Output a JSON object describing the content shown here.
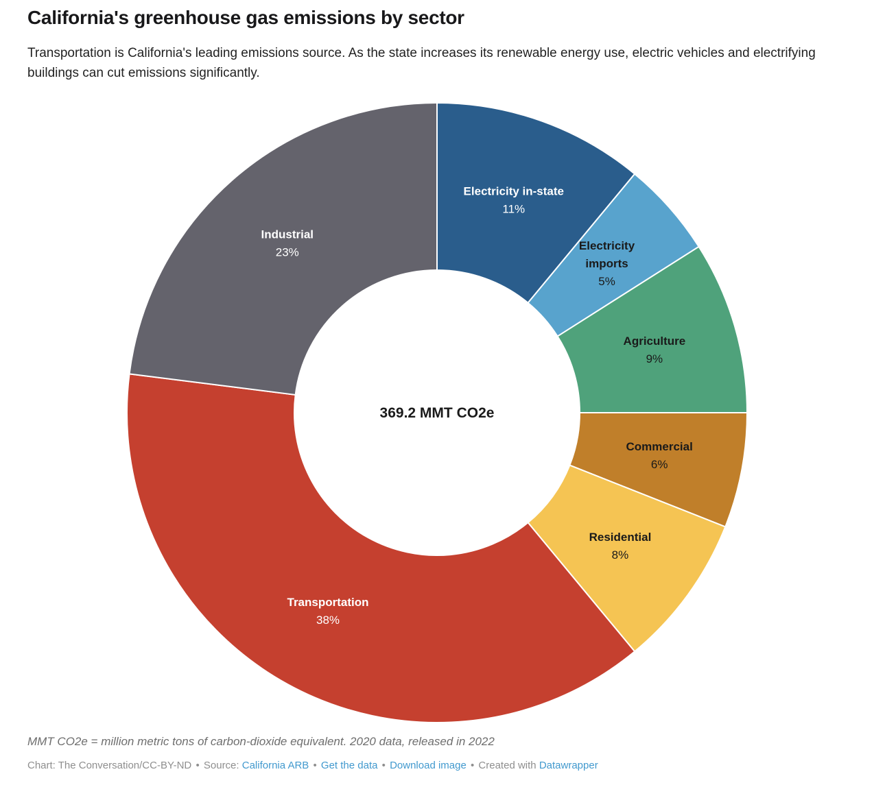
{
  "header": {
    "title": "California's greenhouse gas emissions by sector",
    "subtitle": "Transportation is California's leading emissions source. As the state increases its renewable energy use, electric vehicles and electrifying buildings can cut emissions significantly."
  },
  "chart_data": {
    "type": "pie",
    "variant": "donut",
    "title": "California's greenhouse gas emissions by sector",
    "center_label": "369.2 MMT CO2e",
    "total_value": 369.2,
    "unit": "MMT CO2e",
    "start_angle_deg": 0,
    "direction": "clockwise",
    "legend_position": "labels-inside-slices",
    "segments": [
      {
        "label": "Electricity in-state",
        "label_lines": [
          "Electricity in-state"
        ],
        "pct": 11,
        "color": "#2a5d8c",
        "label_color": "#ffffff"
      },
      {
        "label": "Electricity imports",
        "label_lines": [
          "Electricity",
          "imports"
        ],
        "pct": 5,
        "color": "#58a3cd",
        "label_color": "#1a1a1a"
      },
      {
        "label": "Agriculture",
        "label_lines": [
          "Agriculture"
        ],
        "pct": 9,
        "color": "#4fa27b",
        "label_color": "#1a1a1a"
      },
      {
        "label": "Commercial",
        "label_lines": [
          "Commercial"
        ],
        "pct": 6,
        "color": "#c07f2a",
        "label_color": "#1a1a1a"
      },
      {
        "label": "Residential",
        "label_lines": [
          "Residential"
        ],
        "pct": 8,
        "color": "#f5c453",
        "label_color": "#1a1a1a"
      },
      {
        "label": "Transportation",
        "label_lines": [
          "Transportation"
        ],
        "pct": 38,
        "color": "#c5402f",
        "label_color": "#ffffff"
      },
      {
        "label": "Industrial",
        "label_lines": [
          "Industrial"
        ],
        "pct": 23,
        "color": "#64636c",
        "label_color": "#ffffff"
      }
    ]
  },
  "footer": {
    "note": "MMT CO2e = million metric tons of carbon-dioxide equivalent. 2020 data, released in 2022",
    "credits": {
      "prefix": "Chart: The Conversation/CC-BY-ND",
      "separator": "•",
      "source_label": "Source:",
      "source_link": "California ARB",
      "get_data_link": "Get the data",
      "download_image_link": "Download image",
      "created_with": "Created with",
      "tool_link": "Datawrapper"
    },
    "link_color": "#4199ce"
  }
}
